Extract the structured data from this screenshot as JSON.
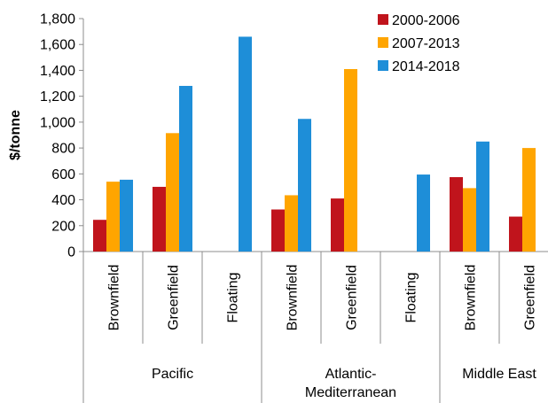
{
  "chart_data": {
    "type": "bar",
    "title": "",
    "xlabel": "",
    "ylabel": "$/tonne",
    "ylim": [
      0,
      1800
    ],
    "yticks": [
      "0",
      "200",
      "400",
      "600",
      "800",
      "1,000",
      "1,200",
      "1,400",
      "1,600",
      "1,800"
    ],
    "grid": false,
    "legend_position": "top-right",
    "groups": [
      {
        "name": "Pacific",
        "categories": [
          "Brownfield",
          "Greenfield",
          "Floating"
        ]
      },
      {
        "name": "Atlantic-Mediterranean",
        "label_lines": [
          "Atlantic-",
          "Mediterranean"
        ],
        "categories": [
          "Brownfield",
          "Greenfield",
          "Floating"
        ]
      },
      {
        "name": "Middle East",
        "categories": [
          "Brownfield",
          "Greenfield"
        ]
      }
    ],
    "categories": [
      "Brownfield",
      "Greenfield",
      "Floating",
      "Brownfield",
      "Greenfield",
      "Floating",
      "Brownfield",
      "Greenfield"
    ],
    "series": [
      {
        "name": "2000-2006",
        "color": "#C0141C",
        "values": [
          245,
          500,
          null,
          325,
          410,
          null,
          575,
          270
        ]
      },
      {
        "name": "2007-2013",
        "color": "#FFA500",
        "values": [
          540,
          915,
          null,
          435,
          1410,
          null,
          490,
          800
        ]
      },
      {
        "name": "2014-2018",
        "color": "#1E8ED8",
        "values": [
          555,
          1280,
          1660,
          1025,
          null,
          595,
          850,
          null
        ]
      }
    ]
  }
}
